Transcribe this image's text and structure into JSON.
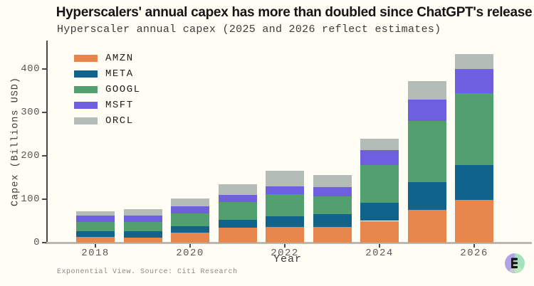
{
  "header": {
    "title": "Hyperscalers' annual capex has more than doubled since ChatGPT's release",
    "subtitle": "Hyperscaler annual capex (2025 and 2026 reflect estimates)"
  },
  "chart_data": {
    "type": "bar",
    "stacked": true,
    "title": "Hyperscaler annual capex (2025 and 2026 reflect estimates)",
    "xlabel": "Year",
    "ylabel": "Capex (Billions USD)",
    "categories": [
      2018,
      2019,
      2020,
      2021,
      2022,
      2023,
      2024,
      2025,
      2026
    ],
    "series": [
      {
        "name": "AMZN",
        "color": "#e8874d",
        "values": [
          13,
          12,
          23,
          34,
          36,
          36,
          50,
          75,
          98
        ]
      },
      {
        "name": "META",
        "color": "#10638a",
        "values": [
          14,
          14,
          15,
          18,
          25,
          30,
          41,
          65,
          80
        ]
      },
      {
        "name": "GOOGL",
        "color": "#52a070",
        "values": [
          21,
          22,
          30,
          41,
          51,
          41,
          87,
          140,
          166
        ]
      },
      {
        "name": "MSFT",
        "color": "#6e5ee0",
        "values": [
          14,
          15,
          15,
          17,
          17,
          21,
          35,
          50,
          56
        ]
      },
      {
        "name": "ORCL",
        "color": "#b3bcb6",
        "values": [
          10,
          14,
          18,
          25,
          36,
          27,
          26,
          42,
          35
        ]
      }
    ],
    "stack_order": "bottom-to-top: AMZN, META, GOOGL, MSFT, ORCL",
    "totals": [
      72,
      77,
      101,
      135,
      165,
      155,
      239,
      372,
      435
    ],
    "ylim": [
      0,
      465
    ],
    "yticks": [
      0,
      100,
      200,
      300,
      400
    ],
    "xticks": [
      2018,
      2020,
      2022,
      2024,
      2026
    ],
    "legend_position": "upper-left",
    "grid": false
  },
  "footer": {
    "source": "Exponential View. Source: Citi Research"
  },
  "logo": {
    "glyph": "E",
    "left_color": "#b2a3e8",
    "right_color": "#a3e3bd",
    "glyph_color": "#141414"
  },
  "colors": {
    "background": "#fffdf4",
    "axis_line": "#b9b9b1",
    "spine": "#4a4a4a",
    "tick_text": "#585858",
    "title_text": "#151515",
    "subtitle_text": "#3b3b3b"
  }
}
